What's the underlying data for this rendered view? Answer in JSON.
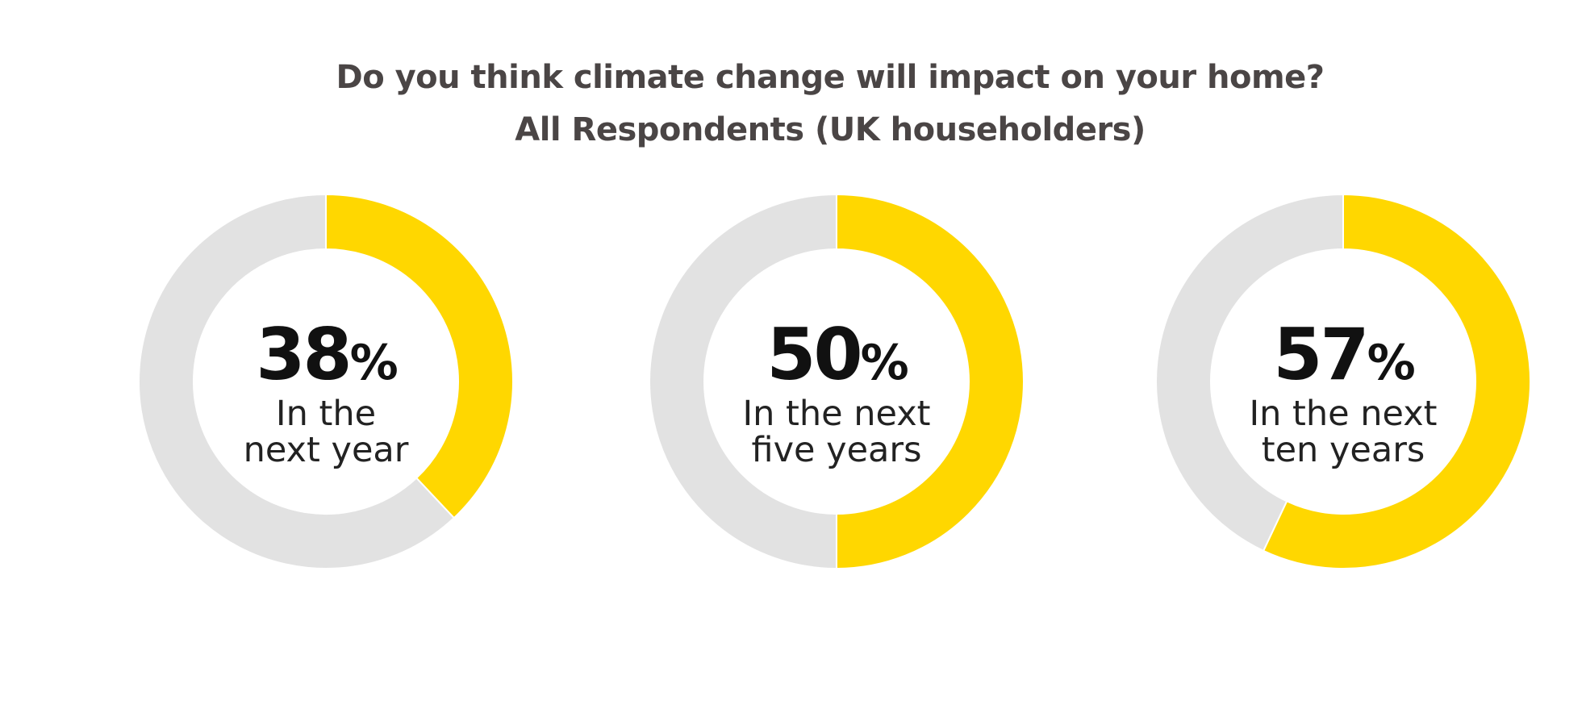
{
  "colors": {
    "filled": "#FFD700",
    "remainder": "#E2E2E2",
    "title": "#4A4545",
    "value_text": "#111111",
    "label_text": "#222222"
  },
  "chart_data": {
    "type": "donut",
    "title": "Do you think climate change will impact on your home?",
    "subtitle": "All Respondents (UK householders)",
    "unit": "%",
    "charts": [
      {
        "value": 38,
        "value_label": "38",
        "label_lines": [
          "In the",
          "next year"
        ]
      },
      {
        "value": 50,
        "value_label": "50",
        "label_lines": [
          "In the next",
          "five years"
        ]
      },
      {
        "value": 57,
        "value_label": "57",
        "label_lines": [
          "In the next",
          "ten years"
        ]
      }
    ]
  }
}
